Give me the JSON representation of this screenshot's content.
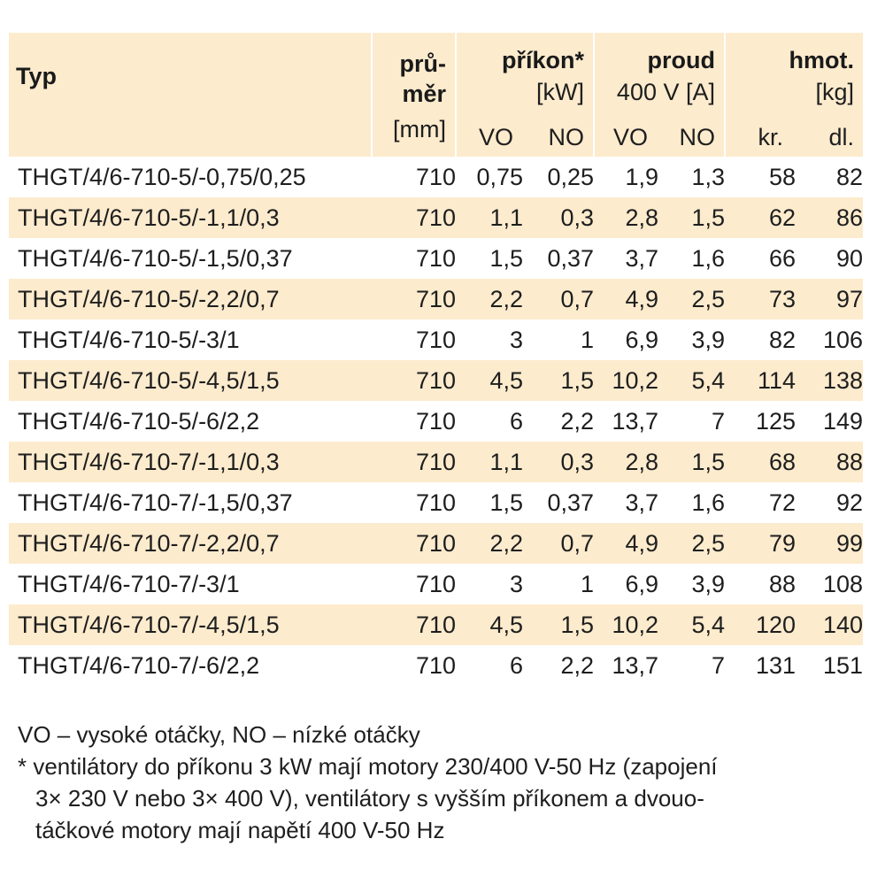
{
  "header": {
    "typ": "Typ",
    "prumer_line1": "prů-",
    "prumer_line2": "měr",
    "prumer_unit": "[mm]",
    "prikon_title": "příkon*",
    "prikon_unit": "[kW]",
    "proud_title": "proud",
    "proud_unit": "400 V [A]",
    "hmot_title": "hmot.",
    "hmot_unit": "[kg]",
    "sub_vo": "VO",
    "sub_no": "NO",
    "sub_kr": "kr.",
    "sub_dl": "dl."
  },
  "rows": [
    {
      "typ": "THGT/4/6-710-5/-0,75/0,25",
      "prumer": "710",
      "prikon_vo": "0,75",
      "prikon_no": "0,25",
      "proud_vo": "1,9",
      "proud_no": "1,3",
      "hmot_kr": "58",
      "hmot_dl": "82"
    },
    {
      "typ": "THGT/4/6-710-5/-1,1/0,3",
      "prumer": "710",
      "prikon_vo": "1,1",
      "prikon_no": "0,3",
      "proud_vo": "2,8",
      "proud_no": "1,5",
      "hmot_kr": "62",
      "hmot_dl": "86"
    },
    {
      "typ": "THGT/4/6-710-5/-1,5/0,37",
      "prumer": "710",
      "prikon_vo": "1,5",
      "prikon_no": "0,37",
      "proud_vo": "3,7",
      "proud_no": "1,6",
      "hmot_kr": "66",
      "hmot_dl": "90"
    },
    {
      "typ": "THGT/4/6-710-5/-2,2/0,7",
      "prumer": "710",
      "prikon_vo": "2,2",
      "prikon_no": "0,7",
      "proud_vo": "4,9",
      "proud_no": "2,5",
      "hmot_kr": "73",
      "hmot_dl": "97"
    },
    {
      "typ": "THGT/4/6-710-5/-3/1",
      "prumer": "710",
      "prikon_vo": "3",
      "prikon_no": "1",
      "proud_vo": "6,9",
      "proud_no": "3,9",
      "hmot_kr": "82",
      "hmot_dl": "106"
    },
    {
      "typ": "THGT/4/6-710-5/-4,5/1,5",
      "prumer": "710",
      "prikon_vo": "4,5",
      "prikon_no": "1,5",
      "proud_vo": "10,2",
      "proud_no": "5,4",
      "hmot_kr": "114",
      "hmot_dl": "138"
    },
    {
      "typ": "THGT/4/6-710-5/-6/2,2",
      "prumer": "710",
      "prikon_vo": "6",
      "prikon_no": "2,2",
      "proud_vo": "13,7",
      "proud_no": "7",
      "hmot_kr": "125",
      "hmot_dl": "149"
    },
    {
      "typ": "THGT/4/6-710-7/-1,1/0,3",
      "prumer": "710",
      "prikon_vo": "1,1",
      "prikon_no": "0,3",
      "proud_vo": "2,8",
      "proud_no": "1,5",
      "hmot_kr": "68",
      "hmot_dl": "88"
    },
    {
      "typ": "THGT/4/6-710-7/-1,5/0,37",
      "prumer": "710",
      "prikon_vo": "1,5",
      "prikon_no": "0,37",
      "proud_vo": "3,7",
      "proud_no": "1,6",
      "hmot_kr": "72",
      "hmot_dl": "92"
    },
    {
      "typ": "THGT/4/6-710-7/-2,2/0,7",
      "prumer": "710",
      "prikon_vo": "2,2",
      "prikon_no": "0,7",
      "proud_vo": "4,9",
      "proud_no": "2,5",
      "hmot_kr": "79",
      "hmot_dl": "99"
    },
    {
      "typ": "THGT/4/6-710-7/-3/1",
      "prumer": "710",
      "prikon_vo": "3",
      "prikon_no": "1",
      "proud_vo": "6,9",
      "proud_no": "3,9",
      "hmot_kr": "88",
      "hmot_dl": "108"
    },
    {
      "typ": "THGT/4/6-710-7/-4,5/1,5",
      "prumer": "710",
      "prikon_vo": "4,5",
      "prikon_no": "1,5",
      "proud_vo": "10,2",
      "proud_no": "5,4",
      "hmot_kr": "120",
      "hmot_dl": "140"
    },
    {
      "typ": "THGT/4/6-710-7/-6/2,2",
      "prumer": "710",
      "prikon_vo": "6",
      "prikon_no": "2,2",
      "proud_vo": "13,7",
      "proud_no": "7",
      "hmot_kr": "131",
      "hmot_dl": "151"
    }
  ],
  "notes": {
    "legend": "VO – vysoké otáčky, NO – nízké otáčky",
    "footnote_line1": "* ventilátory do příkonu 3 kW mají motory 230/400 V-50 Hz (zapojení",
    "footnote_line2": "3× 230 V nebo 3× 400 V), ventilátory s vyšším příkonem a dvouo-",
    "footnote_line3": "táčkové motory mají napětí 400 V-50 Hz"
  },
  "colors": {
    "band": "#fcebcd",
    "text": "#1e1e1e"
  }
}
